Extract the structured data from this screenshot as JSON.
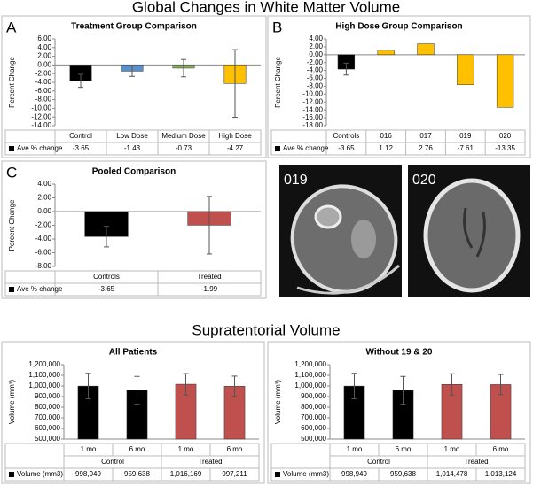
{
  "headings": [
    "Global Changes in White Matter Volume",
    "Supratentorial Volume"
  ],
  "images": [
    {
      "label": "019"
    },
    {
      "label": "020"
    }
  ],
  "chart_data": [
    {
      "type": "bar",
      "panel": "A",
      "title": "Treatment Group Comparison",
      "y_label": "Percent Change",
      "categories": [
        "Control",
        "Low Dose",
        "Medium Dose",
        "High Dose"
      ],
      "series": [
        {
          "name": "Ave % change",
          "colors": [
            "#000000",
            "#5b8fc9",
            "#8db060",
            "#ffc000"
          ],
          "values": [
            -3.65,
            -1.43,
            -0.73,
            -4.27
          ],
          "errors": [
            1.5,
            1.2,
            2.0,
            7.8
          ]
        }
      ],
      "ylim": [
        -14,
        6
      ],
      "yticks": [
        {
          "value": -14,
          "label": "-14.00"
        },
        {
          "value": -12,
          "label": "-12.00"
        },
        {
          "value": -10,
          "label": "-10.00"
        },
        {
          "value": -8,
          "label": "-8.00"
        },
        {
          "value": -6,
          "label": "-6.00"
        },
        {
          "value": -4,
          "label": "-4.00"
        },
        {
          "value": -2,
          "label": "-2.00"
        },
        {
          "value": 0,
          "label": "0.00"
        },
        {
          "value": 2,
          "label": "2.00"
        },
        {
          "value": 4,
          "label": "4.00"
        },
        {
          "value": 6,
          "label": "6.00"
        }
      ]
    },
    {
      "type": "bar",
      "panel": "B",
      "title": "High Dose Group Comparison",
      "y_label": "Percent Change",
      "categories": [
        "Controls",
        "016",
        "017",
        "019",
        "020"
      ],
      "series": [
        {
          "name": "Ave % change",
          "colors": [
            "#000000",
            "#ffc000",
            "#ffc000",
            "#ffc000",
            "#ffc000"
          ],
          "values": [
            -3.65,
            1.12,
            2.76,
            -7.61,
            -13.35
          ],
          "errors": [
            1.5,
            null,
            null,
            null,
            null
          ]
        }
      ],
      "ylim": [
        -18,
        4
      ],
      "yticks": [
        {
          "value": -18,
          "label": "-18.00"
        },
        {
          "value": -16,
          "label": "-16.00"
        },
        {
          "value": -14,
          "label": "-14.00"
        },
        {
          "value": -12,
          "label": "-12.00"
        },
        {
          "value": -10,
          "label": "-10.00"
        },
        {
          "value": -8,
          "label": "-8.00"
        },
        {
          "value": -6,
          "label": "-6.00"
        },
        {
          "value": -4,
          "label": "-4.00"
        },
        {
          "value": -2,
          "label": "-2.00"
        },
        {
          "value": 0,
          "label": "0.00"
        },
        {
          "value": 2,
          "label": "2.00"
        },
        {
          "value": 4,
          "label": "4.00"
        }
      ]
    },
    {
      "type": "bar",
      "panel": "C",
      "title": "Pooled Comparison",
      "y_label": "Percent Change",
      "categories": [
        "Controls",
        "Treated"
      ],
      "series": [
        {
          "name": "Ave % change",
          "colors": [
            "#000000",
            "#c0504d"
          ],
          "values": [
            -3.65,
            -1.99
          ],
          "errors": [
            1.5,
            4.2
          ]
        }
      ],
      "ylim": [
        -8,
        4
      ],
      "yticks": [
        {
          "value": -8,
          "label": "-8.00"
        },
        {
          "value": -6,
          "label": "-6.00"
        },
        {
          "value": -4,
          "label": "-4.00"
        },
        {
          "value": -2,
          "label": "-2.00"
        },
        {
          "value": 0,
          "label": "0.00"
        },
        {
          "value": 2,
          "label": "2.00"
        },
        {
          "value": 4,
          "label": "4.00"
        }
      ]
    },
    {
      "type": "bar",
      "title": "All Patients",
      "y_label": "Volume (mm³)",
      "categories": [
        "1 mo",
        "6 mo",
        "1 mo",
        "6 mo"
      ],
      "groups": [
        "Control",
        "Treated"
      ],
      "series": [
        {
          "name": "Volume (mm3)",
          "colors": [
            "#000000",
            "#000000",
            "#c0504d",
            "#c0504d"
          ],
          "values": [
            998949,
            959638,
            1016169,
            997211
          ],
          "value_labels": [
            "998,949",
            "959,638",
            "1,016,169",
            "997,211"
          ],
          "errors": [
            120000,
            130000,
            100000,
            95000
          ]
        }
      ],
      "ylim": [
        500000,
        1200000
      ],
      "yticks": [
        {
          "value": 500000,
          "label": "500,000"
        },
        {
          "value": 600000,
          "label": "600,000"
        },
        {
          "value": 700000,
          "label": "700,000"
        },
        {
          "value": 800000,
          "label": "800,000"
        },
        {
          "value": 900000,
          "label": "900,000"
        },
        {
          "value": 1000000,
          "label": "1,000,000"
        },
        {
          "value": 1100000,
          "label": "1,100,000"
        },
        {
          "value": 1200000,
          "label": "1,200,000"
        }
      ]
    },
    {
      "type": "bar",
      "title": "Without 19 & 20",
      "y_label": "Volume (mm³)",
      "categories": [
        "1 mo",
        "6 mo",
        "1 mo",
        "6 mo"
      ],
      "groups": [
        "Control",
        "Treated"
      ],
      "series": [
        {
          "name": "Volume (mm3)",
          "colors": [
            "#000000",
            "#000000",
            "#c0504d",
            "#c0504d"
          ],
          "values": [
            998949,
            959638,
            1014478,
            1013124
          ],
          "value_labels": [
            "998,949",
            "959,638",
            "1,014,478",
            "1,013,124"
          ],
          "errors": [
            120000,
            130000,
            100000,
            95000
          ]
        }
      ],
      "ylim": [
        500000,
        1200000
      ],
      "yticks": [
        {
          "value": 500000,
          "label": "500,000"
        },
        {
          "value": 600000,
          "label": "600,000"
        },
        {
          "value": 700000,
          "label": "700,000"
        },
        {
          "value": 800000,
          "label": "800,000"
        },
        {
          "value": 900000,
          "label": "900,000"
        },
        {
          "value": 1000000,
          "label": "1,000,000"
        },
        {
          "value": 1100000,
          "label": "1,100,000"
        },
        {
          "value": 1200000,
          "label": "1,200,000"
        }
      ]
    }
  ]
}
